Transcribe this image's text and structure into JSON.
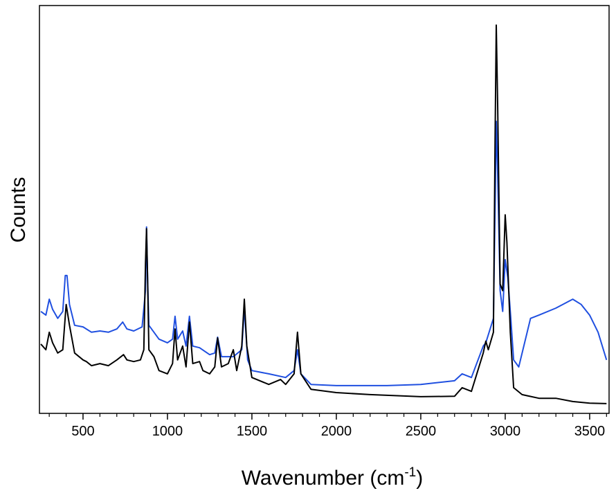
{
  "chart_data": {
    "type": "line",
    "x_label": {
      "text": "Wavenumber (cm",
      "superscript": "-1",
      "suffix": ")"
    },
    "y_label": "Counts",
    "xlim": [
      242,
      3615
    ],
    "ylim": [
      0,
      100
    ],
    "xticks": [
      500,
      1000,
      1500,
      2000,
      2500,
      3000,
      3500
    ],
    "xminor": [
      300,
      400,
      600,
      700,
      800,
      900,
      1100,
      1200,
      1300,
      1400,
      1600,
      1700,
      1800,
      1900,
      2100,
      2200,
      2300,
      2400,
      2600,
      2700,
      2800,
      2900,
      3100,
      3200,
      3300,
      3400,
      3600
    ],
    "series": [
      {
        "color": "#1f4fe0",
        "x": [
          250,
          280,
          300,
          320,
          350,
          380,
          395,
          405,
          420,
          450,
          500,
          550,
          600,
          650,
          700,
          735,
          760,
          800,
          850,
          870,
          876,
          882,
          890,
          950,
          1000,
          1030,
          1045,
          1060,
          1090,
          1110,
          1130,
          1150,
          1190,
          1250,
          1280,
          1297,
          1320,
          1390,
          1440,
          1455,
          1475,
          1500,
          1600,
          1700,
          1750,
          1770,
          1790,
          1850,
          2000,
          2300,
          2500,
          2700,
          2745,
          2800,
          2870,
          2885,
          2930,
          2940,
          2947,
          2955,
          2970,
          2985,
          3000,
          3015,
          3030,
          3050,
          3080,
          3150,
          3200,
          3300,
          3400,
          3450,
          3500,
          3550,
          3600
        ],
        "values": [
          25.0,
          24.1,
          28.0,
          25.5,
          23.3,
          25.0,
          33.8,
          33.8,
          26.7,
          21.6,
          21.2,
          19.9,
          20.2,
          19.9,
          20.7,
          22.4,
          20.7,
          20.2,
          21.2,
          30.1,
          45.7,
          33.4,
          21.6,
          18.2,
          17.3,
          18.2,
          23.8,
          18.2,
          20.2,
          16.5,
          23.8,
          16.5,
          16.1,
          14.4,
          14.8,
          18.7,
          13.9,
          13.9,
          15.6,
          25.8,
          13.1,
          10.5,
          9.7,
          8.8,
          10.5,
          15.6,
          9.7,
          7.1,
          6.8,
          6.8,
          7.1,
          8.0,
          9.7,
          8.8,
          16.5,
          17.3,
          23.3,
          50.4,
          71.6,
          58.9,
          30.1,
          25.0,
          37.7,
          33.4,
          25.0,
          13.1,
          11.4,
          23.3,
          24.1,
          25.8,
          28.0,
          26.7,
          24.1,
          19.9,
          13.1
        ]
      },
      {
        "color": "#000000",
        "x": [
          250,
          280,
          300,
          320,
          350,
          380,
          400,
          420,
          450,
          500,
          520,
          550,
          600,
          650,
          700,
          740,
          760,
          800,
          840,
          860,
          870,
          876,
          882,
          890,
          920,
          950,
          1000,
          1030,
          1045,
          1060,
          1090,
          1110,
          1130,
          1150,
          1190,
          1210,
          1250,
          1280,
          1297,
          1320,
          1360,
          1390,
          1410,
          1440,
          1455,
          1470,
          1500,
          1600,
          1670,
          1700,
          1750,
          1770,
          1790,
          1850,
          2000,
          2200,
          2500,
          2700,
          2745,
          2800,
          2870,
          2885,
          2900,
          2930,
          2940,
          2947,
          2955,
          2970,
          2985,
          3000,
          3010,
          3030,
          3050,
          3100,
          3200,
          3300,
          3400,
          3500,
          3600
        ],
        "values": [
          17.0,
          15.6,
          19.9,
          17.3,
          14.8,
          15.6,
          26.7,
          21.6,
          14.8,
          13.1,
          12.7,
          11.7,
          12.2,
          11.7,
          13.1,
          14.4,
          13.1,
          12.7,
          13.1,
          15.6,
          36.8,
          45.3,
          33.4,
          15.6,
          13.9,
          10.5,
          9.7,
          12.2,
          20.7,
          13.1,
          16.5,
          11.4,
          22.4,
          12.2,
          12.7,
          10.5,
          9.7,
          11.4,
          18.5,
          11.4,
          12.2,
          15.6,
          10.5,
          16.5,
          28.0,
          16.5,
          8.8,
          7.1,
          8.3,
          7.1,
          9.7,
          19.9,
          9.7,
          5.9,
          5.1,
          4.6,
          4.1,
          4.2,
          6.3,
          5.4,
          14.8,
          17.7,
          15.6,
          19.9,
          67.4,
          95.2,
          75.9,
          31.7,
          30.1,
          48.7,
          41.9,
          19.9,
          6.3,
          4.6,
          3.7,
          3.7,
          2.9,
          2.5,
          2.4
        ]
      }
    ]
  }
}
